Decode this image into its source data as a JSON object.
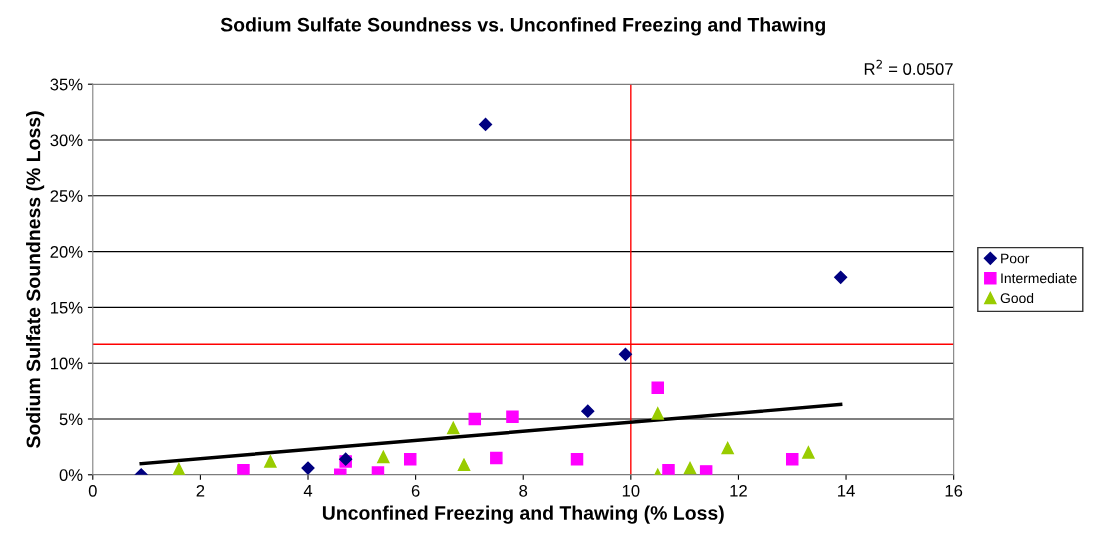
{
  "chart_data": {
    "type": "scatter",
    "title": "Sodium Sulfate Soundness vs. Unconfined Freezing and Thawing",
    "xlabel": "Unconfined Freezing and Thawing (% Loss)",
    "ylabel": "Sodium Sulfate Soundness (% Loss)",
    "xlim": [
      0,
      16
    ],
    "xticks": [
      0,
      2,
      4,
      6,
      8,
      10,
      12,
      14,
      16
    ],
    "ylim": [
      0,
      35
    ],
    "yticks": [
      {
        "value": 0,
        "label": "0%"
      },
      {
        "value": 5,
        "label": "5%"
      },
      {
        "value": 10,
        "label": "10%"
      },
      {
        "value": 15,
        "label": "15%"
      },
      {
        "value": 20,
        "label": "20%"
      },
      {
        "value": 25,
        "label": "25%"
      },
      {
        "value": 30,
        "label": "30%"
      },
      {
        "value": 35,
        "label": "35%"
      }
    ],
    "grid": "y",
    "legend": "right",
    "series": [
      {
        "name": "Poor",
        "color": "#000080",
        "marker": "diamond",
        "x": [
          0.9,
          4.0,
          4.7,
          7.3,
          9.2,
          9.9,
          13.9
        ],
        "values": [
          0,
          0.6,
          1.4,
          31.4,
          5.7,
          10.8,
          17.7
        ]
      },
      {
        "name": "Intermediate",
        "color": "#ff00ff",
        "marker": "square",
        "x": [
          2.8,
          4.6,
          4.7,
          5.3,
          5.9,
          7.1,
          7.8,
          7.5,
          9.0,
          10.5,
          10.7,
          11.4,
          13.0
        ],
        "values": [
          0.4,
          0,
          1.2,
          0.2,
          1.4,
          5.0,
          5.2,
          1.5,
          1.4,
          7.8,
          0.4,
          0.3,
          1.4
        ]
      },
      {
        "name": "Good",
        "color": "#99cc00",
        "marker": "triangle",
        "x": [
          1.6,
          3.3,
          5.4,
          6.7,
          6.9,
          10.5,
          10.5,
          11.1,
          11.8,
          13.3
        ],
        "values": [
          0.5,
          1.2,
          1.6,
          4.2,
          0.9,
          5.5,
          0,
          0.6,
          2.4,
          2.0
        ]
      },
      {
        "type": "line",
        "color": "#000000",
        "marker": "none",
        "x": [
          0.9,
          13.9
        ],
        "values": [
          1.0,
          6.3
        ]
      }
    ],
    "ref_lines": [
      {
        "axis": "x",
        "value": 10,
        "color": "#ff0000"
      },
      {
        "axis": "y",
        "value": 11.7,
        "color": "#ff0000"
      }
    ],
    "annotations": [
      "R$^{2}$ = 0.0507"
    ]
  }
}
